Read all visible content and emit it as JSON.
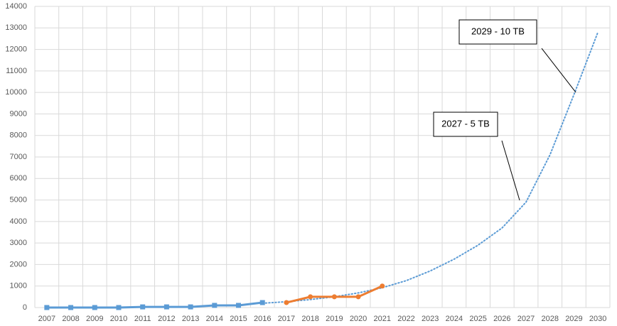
{
  "chart_data": {
    "type": "line",
    "categories": [
      "2007",
      "2008",
      "2009",
      "2010",
      "2011",
      "2012",
      "2013",
      "2014",
      "2015",
      "2016",
      "2017",
      "2018",
      "2019",
      "2020",
      "2021",
      "2022",
      "2023",
      "2024",
      "2025",
      "2026",
      "2027",
      "2028",
      "2029",
      "2030"
    ],
    "series": [
      {
        "color": "#5b9bd5",
        "marker": "square",
        "style": "solid",
        "values": [
          0,
          0,
          0,
          0,
          30,
          30,
          30,
          100,
          100,
          230,
          null,
          null,
          null,
          null,
          null,
          null,
          null,
          null,
          null,
          null,
          null,
          null,
          null,
          null
        ]
      },
      {
        "color": "#ed7d31",
        "marker": "circle",
        "style": "solid",
        "values": [
          null,
          null,
          null,
          null,
          null,
          null,
          null,
          null,
          null,
          null,
          230,
          500,
          500,
          500,
          1000,
          null,
          null,
          null,
          null,
          null,
          null,
          null,
          null,
          null
        ]
      },
      {
        "color": "#5b9bd5",
        "marker": "none",
        "style": "dotted",
        "values": [
          null,
          null,
          null,
          null,
          null,
          null,
          null,
          null,
          null,
          200,
          270,
          370,
          500,
          680,
          920,
          1250,
          1700,
          2250,
          2900,
          3700,
          4900,
          7100,
          9900,
          12800
        ]
      }
    ],
    "annotations": [
      {
        "text": "2029 - 10 TB"
      },
      {
        "text": "2027 - 5 TB"
      }
    ],
    "ylim": [
      0,
      14000
    ],
    "yticks": [
      0,
      1000,
      2000,
      3000,
      4000,
      5000,
      6000,
      7000,
      8000,
      9000,
      10000,
      11000,
      12000,
      13000,
      14000
    ],
    "grid": true
  }
}
